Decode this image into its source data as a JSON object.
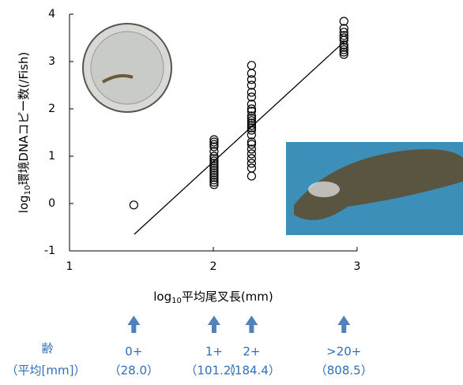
{
  "chart_data": {
    "type": "scatter",
    "y_label": {
      "prefix": "log",
      "sub": "10",
      "text": "環境DNAコピー数(/Fish)"
    },
    "x_label": {
      "prefix": "log",
      "sub": "10",
      "text": "平均尾叉長(mm)"
    },
    "xlim": [
      1,
      3
    ],
    "ylim": [
      -1,
      4
    ],
    "xticks": [
      1,
      2,
      3
    ],
    "yticks": [
      -1,
      0,
      1,
      2,
      3,
      4
    ],
    "x": [
      1.447,
      2.005,
      2.005,
      2.005,
      2.005,
      2.005,
      2.005,
      2.005,
      2.005,
      2.005,
      2.005,
      2.005,
      2.005,
      2.005,
      2.005,
      2.005,
      2.005,
      2.005,
      2.005,
      2.266,
      2.266,
      2.266,
      2.266,
      2.266,
      2.266,
      2.266,
      2.266,
      2.266,
      2.266,
      2.266,
      2.266,
      2.266,
      2.266,
      2.266,
      2.266,
      2.266,
      2.266,
      2.266,
      2.266,
      2.266,
      2.266,
      2.266,
      2.266,
      2.266,
      2.908,
      2.908,
      2.908,
      2.908,
      2.908,
      2.908,
      2.908,
      2.908,
      2.908,
      2.908,
      2.908
    ],
    "y": [
      -0.03,
      1.35,
      1.3,
      1.25,
      1.2,
      1.1,
      1.0,
      0.95,
      0.9,
      0.85,
      0.8,
      0.75,
      0.7,
      0.65,
      0.6,
      0.55,
      0.5,
      0.45,
      0.4,
      2.92,
      2.75,
      2.62,
      2.5,
      2.35,
      2.25,
      2.1,
      2.0,
      1.95,
      1.85,
      1.8,
      1.75,
      1.7,
      1.65,
      1.6,
      1.55,
      1.45,
      1.3,
      1.25,
      1.15,
      1.05,
      0.95,
      0.85,
      0.75,
      0.58,
      3.85,
      3.7,
      3.62,
      3.55,
      3.5,
      3.45,
      3.35,
      3.3,
      3.25,
      3.2,
      3.15
    ],
    "color": "#000000",
    "fit_line": {
      "x": [
        1.45,
        2.91
      ],
      "y": [
        -0.65,
        3.42
      ]
    },
    "age_header": {
      "title": "齢",
      "subtitle": "（平均[mm]）"
    },
    "age_groups": [
      {
        "age": "0+",
        "mean": "（28.0）",
        "x": 1.447
      },
      {
        "age": "1+",
        "mean": "（101.2）",
        "x": 2.005
      },
      {
        "age": "2+",
        "mean": "（184.4）",
        "x": 2.266
      },
      {
        "age": ">20+",
        "mean": "（808.5）",
        "x": 2.908
      }
    ]
  }
}
